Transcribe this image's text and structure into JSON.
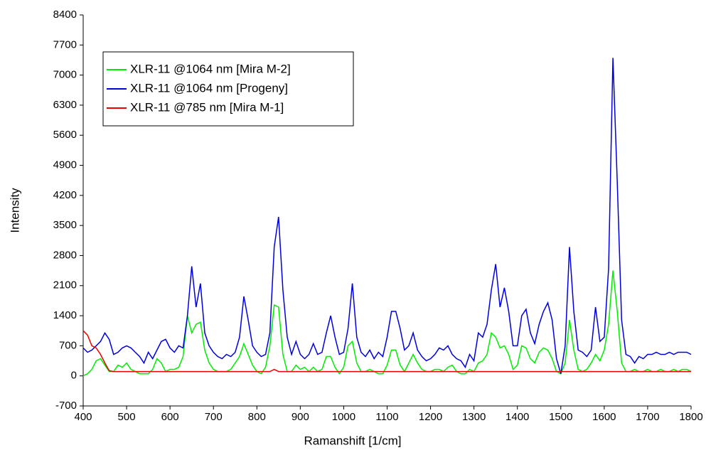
{
  "chart_data": {
    "type": "line",
    "x_label": "Ramanshift [1/cm]",
    "y_label": "Intensity",
    "x": [
      400,
      410,
      420,
      430,
      440,
      450,
      460,
      470,
      480,
      490,
      500,
      510,
      520,
      530,
      540,
      550,
      560,
      570,
      580,
      590,
      600,
      610,
      620,
      630,
      640,
      650,
      660,
      670,
      680,
      690,
      700,
      710,
      720,
      730,
      740,
      750,
      760,
      770,
      780,
      790,
      800,
      810,
      820,
      830,
      840,
      850,
      860,
      870,
      880,
      890,
      900,
      910,
      920,
      930,
      940,
      950,
      960,
      970,
      980,
      990,
      1000,
      1010,
      1020,
      1030,
      1040,
      1050,
      1060,
      1070,
      1080,
      1090,
      1100,
      1110,
      1120,
      1130,
      1140,
      1150,
      1160,
      1170,
      1180,
      1190,
      1200,
      1210,
      1220,
      1230,
      1240,
      1250,
      1260,
      1270,
      1280,
      1290,
      1300,
      1310,
      1320,
      1330,
      1340,
      1350,
      1360,
      1370,
      1380,
      1390,
      1400,
      1410,
      1420,
      1430,
      1440,
      1450,
      1460,
      1470,
      1480,
      1490,
      1500,
      1510,
      1520,
      1530,
      1540,
      1550,
      1560,
      1570,
      1580,
      1590,
      1600,
      1610,
      1620,
      1630,
      1640,
      1650,
      1660,
      1670,
      1680,
      1690,
      1700,
      1710,
      1720,
      1730,
      1740,
      1750,
      1760,
      1770,
      1780,
      1790,
      1800
    ],
    "series": [
      {
        "name": "XLR-11 @1064 nm [Mira M-2]",
        "color": "#00ee00",
        "values": [
          0,
          50,
          150,
          350,
          400,
          250,
          100,
          100,
          250,
          200,
          300,
          150,
          100,
          50,
          50,
          50,
          150,
          400,
          300,
          100,
          150,
          150,
          200,
          450,
          1400,
          1000,
          1200,
          1250,
          600,
          300,
          150,
          100,
          100,
          100,
          150,
          300,
          450,
          750,
          500,
          250,
          100,
          50,
          200,
          700,
          1650,
          1600,
          500,
          100,
          100,
          250,
          150,
          200,
          100,
          200,
          100,
          150,
          450,
          450,
          200,
          50,
          200,
          700,
          800,
          300,
          100,
          100,
          150,
          100,
          50,
          50,
          250,
          600,
          600,
          250,
          100,
          300,
          500,
          300,
          150,
          100,
          100,
          150,
          150,
          100,
          200,
          250,
          100,
          50,
          50,
          150,
          100,
          300,
          350,
          500,
          1000,
          900,
          650,
          700,
          500,
          150,
          250,
          700,
          650,
          400,
          300,
          550,
          650,
          600,
          400,
          100,
          50,
          300,
          1300,
          600,
          150,
          100,
          150,
          300,
          500,
          350,
          600,
          1200,
          2450,
          1500,
          300,
          100,
          100,
          150,
          100,
          100,
          150,
          100,
          100,
          150,
          100,
          100,
          150,
          100,
          150,
          150,
          100
        ]
      },
      {
        "name": "XLR-11 @1064 nm [Progeny]",
        "color": "#0000dd",
        "values": [
          650,
          550,
          600,
          700,
          800,
          1000,
          850,
          500,
          550,
          650,
          700,
          650,
          550,
          450,
          300,
          550,
          400,
          600,
          800,
          850,
          650,
          550,
          700,
          650,
          1400,
          2550,
          1600,
          2150,
          1000,
          700,
          550,
          450,
          400,
          500,
          450,
          550,
          900,
          1850,
          1300,
          700,
          550,
          450,
          500,
          1000,
          3000,
          3700,
          2000,
          900,
          500,
          800,
          500,
          400,
          500,
          750,
          500,
          550,
          1000,
          1400,
          900,
          500,
          550,
          1100,
          2150,
          900,
          550,
          450,
          600,
          400,
          550,
          450,
          900,
          1500,
          1500,
          1100,
          600,
          700,
          1000,
          600,
          450,
          350,
          400,
          500,
          650,
          600,
          700,
          500,
          400,
          350,
          200,
          500,
          350,
          1000,
          900,
          1200,
          2000,
          2600,
          1600,
          2050,
          1500,
          700,
          700,
          1400,
          1550,
          1000,
          750,
          1200,
          1500,
          1700,
          1300,
          400,
          50,
          700,
          3000,
          1500,
          600,
          550,
          450,
          600,
          1600,
          800,
          900,
          2500,
          7400,
          4500,
          1300,
          500,
          450,
          300,
          450,
          400,
          500,
          500,
          550,
          500,
          500,
          550,
          500,
          550,
          550,
          550,
          500
        ]
      },
      {
        "name": "XLR-11 @785 nm [Mira M-1]",
        "color": "#ee0000",
        "values": [
          1050,
          950,
          700,
          650,
          500,
          300,
          120,
          100,
          100,
          100,
          100,
          100,
          100,
          100,
          100,
          100,
          100,
          100,
          100,
          100,
          100,
          100,
          100,
          100,
          100,
          100,
          100,
          100,
          100,
          100,
          100,
          100,
          100,
          100,
          100,
          100,
          100,
          100,
          100,
          100,
          100,
          100,
          100,
          100,
          150,
          100,
          100,
          100,
          100,
          100,
          100,
          100,
          100,
          100,
          100,
          100,
          100,
          100,
          100,
          100,
          100,
          100,
          100,
          100,
          100,
          100,
          100,
          100,
          100,
          100,
          100,
          100,
          100,
          100,
          100,
          100,
          100,
          100,
          100,
          100,
          100,
          100,
          100,
          100,
          100,
          100,
          100,
          100,
          100,
          100,
          100,
          100,
          100,
          100,
          100,
          100,
          100,
          100,
          100,
          100,
          100,
          100,
          100,
          100,
          100,
          100,
          100,
          100,
          100,
          100,
          100,
          100,
          100,
          100,
          100,
          100,
          100,
          100,
          100,
          100,
          100,
          100,
          100,
          100,
          100,
          100,
          100,
          100,
          100,
          100,
          100,
          100,
          100,
          100,
          100,
          100,
          100,
          100,
          100,
          100,
          100
        ]
      }
    ],
    "xlim": [
      400,
      1800
    ],
    "xticks": [
      400,
      500,
      600,
      700,
      800,
      900,
      1000,
      1100,
      1200,
      1300,
      1400,
      1500,
      1600,
      1700,
      1800
    ],
    "ylim": [
      -700,
      8400
    ],
    "yticks": [
      -700,
      0,
      700,
      1400,
      2100,
      2800,
      3500,
      4200,
      4900,
      5600,
      6300,
      7000,
      7700,
      8400
    ],
    "grid": false,
    "legend": "upper-left"
  }
}
